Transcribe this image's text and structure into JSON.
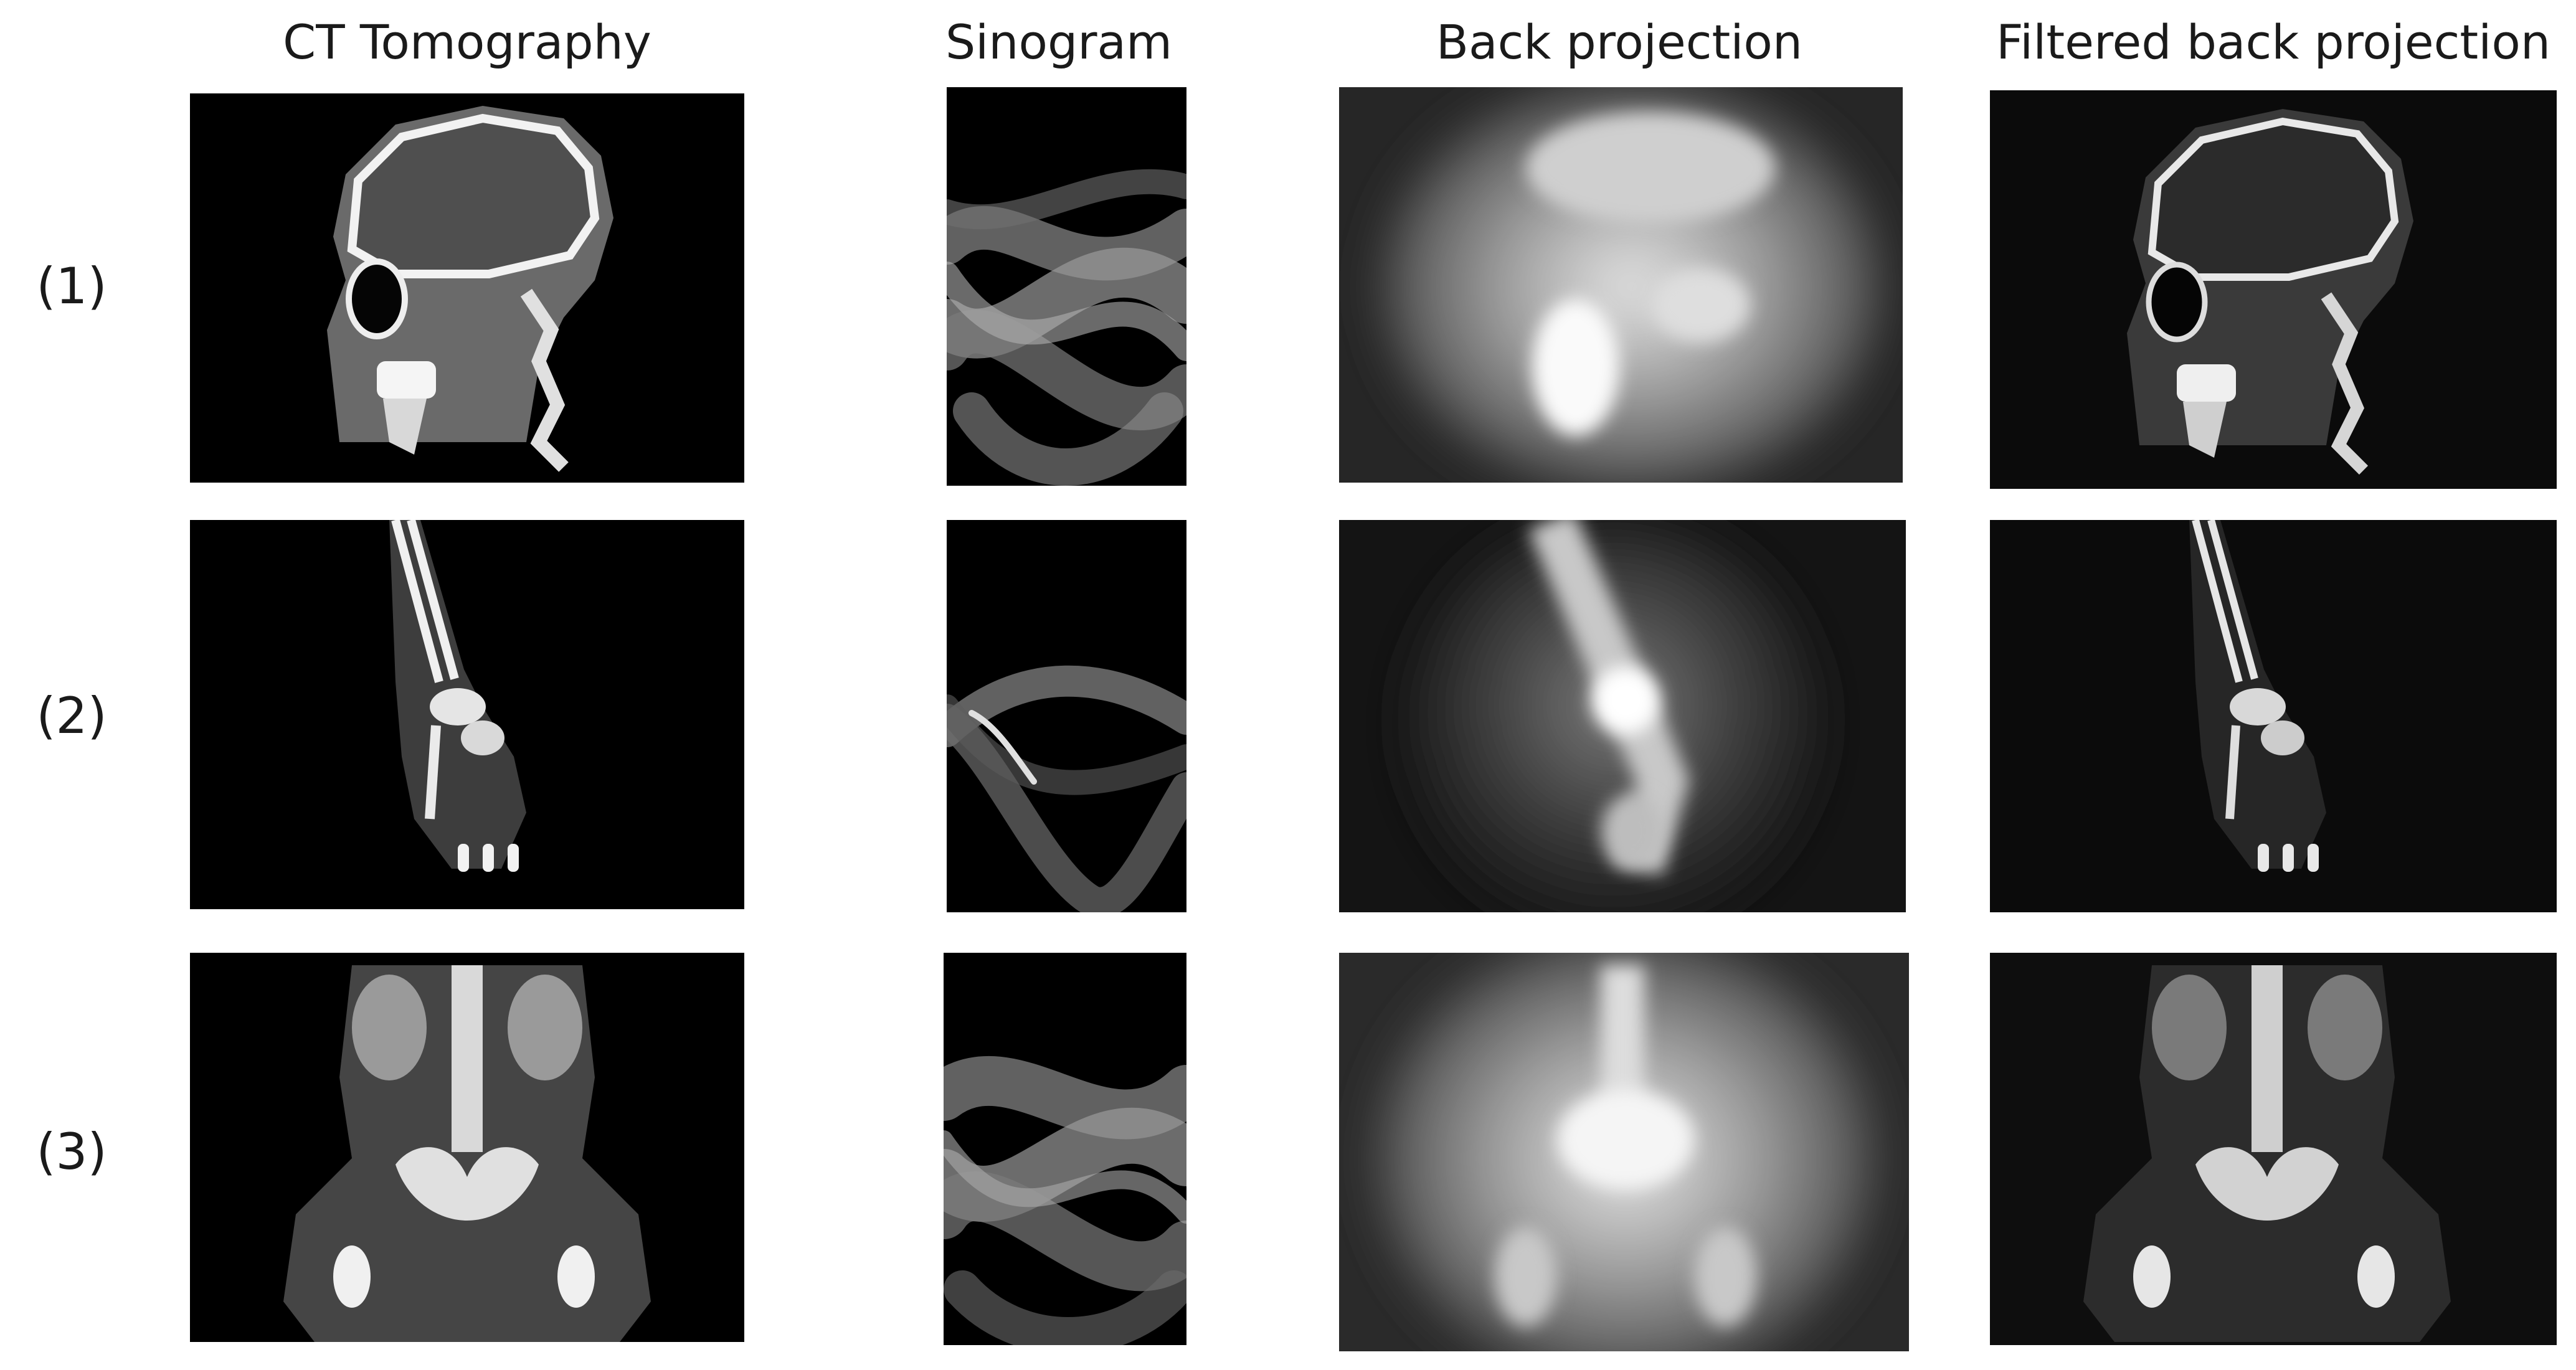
{
  "columns": [
    {
      "title": "CT Tomography"
    },
    {
      "title": "Sinogram"
    },
    {
      "title": "Back projection"
    },
    {
      "title": "Filtered back projection"
    }
  ],
  "rows": [
    {
      "label": "(1)",
      "subject": "head"
    },
    {
      "label": "(2)",
      "subject": "hand"
    },
    {
      "label": "(3)",
      "subject": "torso"
    }
  ]
}
